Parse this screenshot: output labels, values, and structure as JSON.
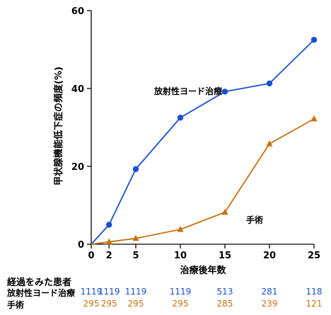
{
  "chart_data": {
    "type": "line",
    "ylabel": "甲状腺機能低下症の頻度(%)",
    "xlabel": "治療後年数",
    "xlim": [
      0,
      25
    ],
    "ylim": [
      0,
      60
    ],
    "xticks": [
      0,
      2,
      5,
      10,
      15,
      20,
      25
    ],
    "yticks": [
      0,
      20,
      40,
      60
    ],
    "grid": false,
    "series": [
      {
        "name": "放射性ヨード治療",
        "color": "#1a4fd1",
        "marker": "circle",
        "x": [
          0,
          2,
          5,
          10,
          15,
          20,
          25
        ],
        "y": [
          0,
          5,
          19.3,
          32.5,
          39.2,
          41.3,
          52.5
        ]
      },
      {
        "name": "手術",
        "color": "#c8700f",
        "marker": "triangle",
        "x": [
          0,
          2,
          5,
          10,
          15,
          20,
          25
        ],
        "y": [
          0,
          0.6,
          1.5,
          3.8,
          8.2,
          25.8,
          32.2
        ]
      }
    ]
  },
  "risk_table": {
    "title": "経過をみた患者",
    "rows": [
      {
        "label": "放射性ヨード治療",
        "color": "#1a4fd1",
        "values": [
          "1119",
          "1119",
          "1119",
          "1119",
          "513",
          "281",
          "118"
        ]
      },
      {
        "label": "手術",
        "color": "#c8700f",
        "values": [
          "295",
          "295",
          "295",
          "295",
          "285",
          "239",
          "121"
        ]
      }
    ]
  }
}
